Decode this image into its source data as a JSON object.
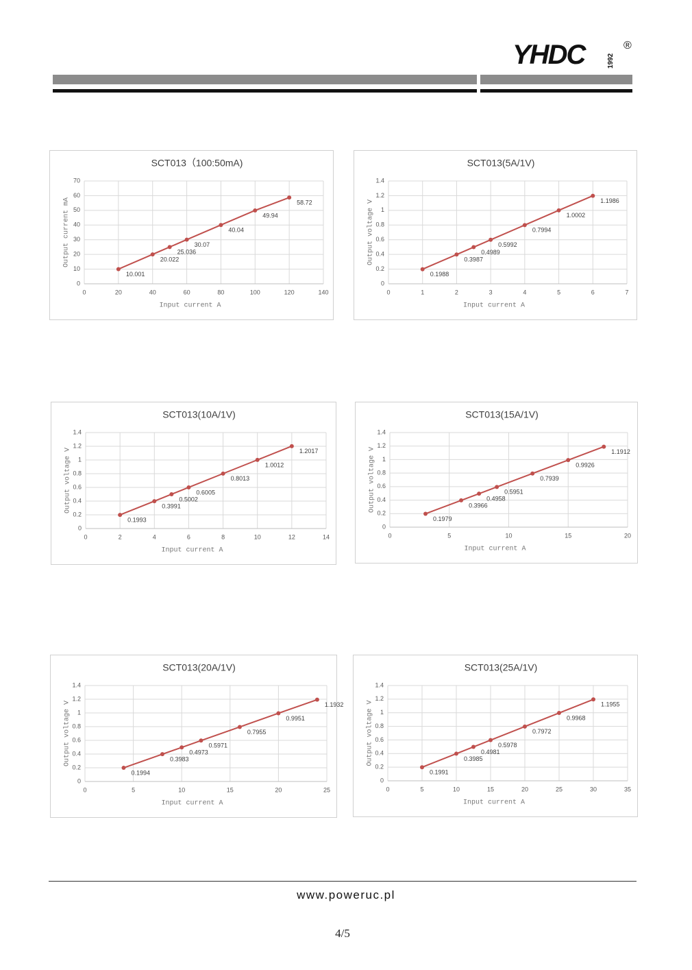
{
  "header": {
    "logo": "YHDC",
    "year": "1992",
    "registered": "®"
  },
  "chart_data": [
    {
      "type": "line",
      "title": "SCT013（100:50mA)",
      "x_label": "Input current   A",
      "y_label": "Output current  mA",
      "color": "#c0504d",
      "grid": true,
      "x": [
        20,
        40,
        50,
        60,
        80,
        100,
        120
      ],
      "values": [
        10.001,
        20.022,
        25.036,
        30.07,
        40.04,
        49.94,
        58.72
      ],
      "xlim": [
        0,
        140
      ],
      "xticks": [
        0,
        20,
        40,
        60,
        80,
        100,
        120,
        140
      ],
      "ylim": [
        0,
        70
      ],
      "yticks": [
        0,
        10,
        20,
        30,
        40,
        50,
        60,
        70
      ]
    },
    {
      "type": "line",
      "title": "SCT013(5A/1V)",
      "x_label": "Input current   A",
      "y_label": "Output voltage  V",
      "color": "#c0504d",
      "grid": true,
      "x": [
        1,
        2,
        2.5,
        3,
        4,
        5,
        6
      ],
      "values": [
        0.1988,
        0.3987,
        0.4989,
        0.5992,
        0.7994,
        1.0002,
        1.1986
      ],
      "xlim": [
        0,
        7
      ],
      "xticks": [
        0,
        1,
        2,
        3,
        4,
        5,
        6,
        7
      ],
      "ylim": [
        0,
        1.4
      ],
      "yticks": [
        0,
        0.2,
        0.4,
        0.6,
        0.8,
        1,
        1.2,
        1.4
      ]
    },
    {
      "type": "line",
      "title": "SCT013(10A/1V)",
      "x_label": "Input current   A",
      "y_label": "Output voltage  V",
      "color": "#c0504d",
      "grid": true,
      "x": [
        2,
        4,
        5,
        6,
        8,
        10,
        12
      ],
      "values": [
        0.1993,
        0.3991,
        0.5002,
        0.6005,
        0.8013,
        1.0012,
        1.2017
      ],
      "xlim": [
        0,
        14
      ],
      "xticks": [
        0,
        2,
        4,
        6,
        8,
        10,
        12,
        14
      ],
      "ylim": [
        0,
        1.4
      ],
      "yticks": [
        0,
        0.2,
        0.4,
        0.6,
        0.8,
        1,
        1.2,
        1.4
      ]
    },
    {
      "type": "line",
      "title": "SCT013(15A/1V)",
      "x_label": "Input current   A",
      "y_label": "Output voltage  V",
      "color": "#c0504d",
      "grid": true,
      "x": [
        3,
        6,
        7.5,
        9,
        12,
        15,
        18
      ],
      "values": [
        0.1979,
        0.3966,
        0.4958,
        0.5951,
        0.7939,
        0.9926,
        1.1912
      ],
      "xlim": [
        0,
        20
      ],
      "xticks": [
        0,
        5,
        10,
        15,
        20
      ],
      "ylim": [
        0,
        1.4
      ],
      "yticks": [
        0,
        0.2,
        0.4,
        0.6,
        0.8,
        1,
        1.2,
        1.4
      ]
    },
    {
      "type": "line",
      "title": "SCT013(20A/1V)",
      "x_label": "Input current   A",
      "y_label": "Output voltage  V",
      "color": "#c0504d",
      "grid": true,
      "x": [
        4,
        8,
        10,
        12,
        16,
        20,
        24
      ],
      "values": [
        0.1994,
        0.3983,
        0.4973,
        0.5971,
        0.7955,
        0.9951,
        1.1932
      ],
      "xlim": [
        0,
        25
      ],
      "xticks": [
        0,
        5,
        10,
        15,
        20,
        25
      ],
      "ylim": [
        0,
        1.4
      ],
      "yticks": [
        0,
        0.2,
        0.4,
        0.6,
        0.8,
        1,
        1.2,
        1.4
      ]
    },
    {
      "type": "line",
      "title": "SCT013(25A/1V)",
      "x_label": "Input current   A",
      "y_label": "Output voltage  V",
      "color": "#c0504d",
      "grid": true,
      "x": [
        5,
        10,
        12.5,
        15,
        20,
        25,
        30
      ],
      "values": [
        0.1991,
        0.3985,
        0.4981,
        0.5978,
        0.7972,
        0.9968,
        1.1955
      ],
      "xlim": [
        0,
        35
      ],
      "xticks": [
        0,
        5,
        10,
        15,
        20,
        25,
        30,
        35
      ],
      "ylim": [
        0,
        1.4
      ],
      "yticks": [
        0,
        0.2,
        0.4,
        0.6,
        0.8,
        1,
        1.2,
        1.4
      ]
    }
  ],
  "footer": {
    "website": "www.poweruc.pl",
    "page": "4/5"
  }
}
